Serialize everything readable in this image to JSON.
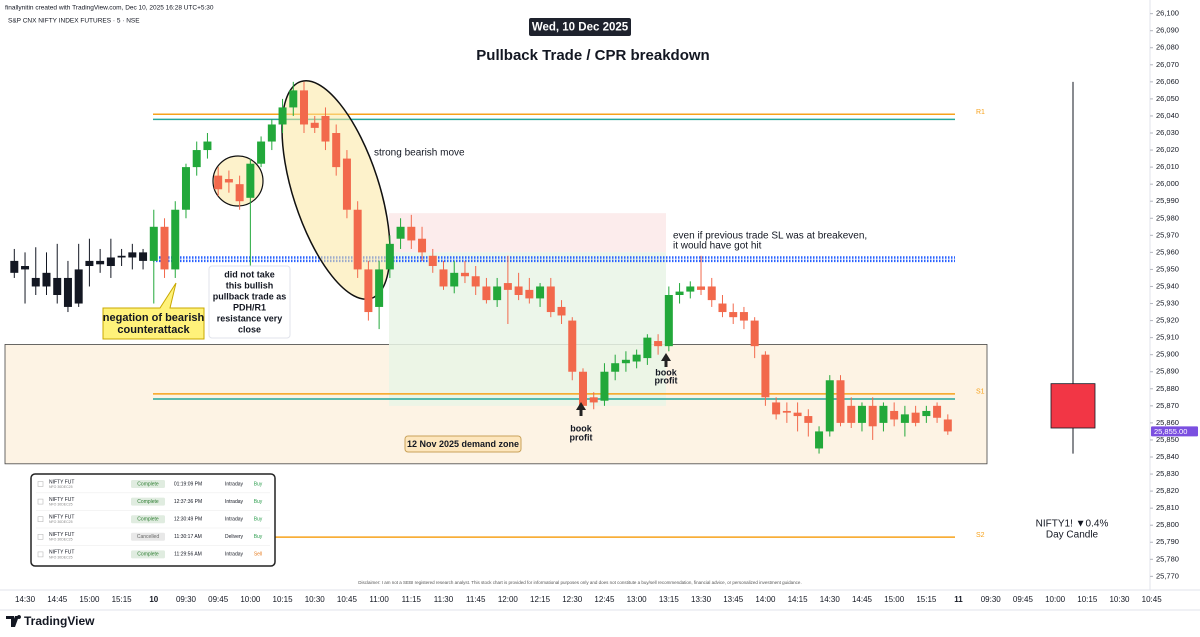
{
  "header": {
    "author_line": "finallynitin created with TradingView.com, Dec 10, 2025 16:28 UTC+5:30",
    "symbol": "S&P CNX NIFTY INDEX FUTURES · 5 · NSE",
    "date": "Wed, 10 Dec 2025"
  },
  "chart_data": {
    "type": "candlestick",
    "title": "Pullback Trade / CPR breakdown",
    "categories": [
      null,
      "14:30",
      null,
      null,
      "14:45",
      null,
      null,
      "15:00",
      null,
      null,
      "15:15",
      null,
      null,
      "10",
      null,
      null,
      "09:30",
      null,
      null,
      "09:45",
      null,
      null,
      "10:00",
      null,
      null,
      "10:15",
      null,
      null,
      "10:30",
      null,
      null,
      "10:45",
      null,
      null,
      "11:00",
      null,
      null,
      "11:15",
      null,
      null,
      "11:30",
      null,
      null,
      "11:45",
      null,
      null,
      "12:00",
      null,
      null,
      "12:15",
      null,
      null,
      "12:30",
      null,
      null,
      "12:45",
      null,
      null,
      "13:00",
      null,
      null,
      "13:15",
      null,
      null,
      "13:30",
      null,
      null,
      "13:45",
      null,
      null,
      "14:00",
      null,
      null,
      "14:15",
      null,
      null,
      "14:30",
      null,
      null,
      "14:45",
      null,
      null,
      "15:00",
      null,
      null,
      "15:15",
      null,
      null,
      "11",
      null,
      null,
      "09:30",
      null,
      null,
      "09:45",
      null,
      null,
      "10:00",
      null,
      null,
      "10:15",
      null,
      null,
      "10:30",
      null,
      null,
      "10:45"
    ],
    "open": [
      25955,
      25952,
      25945,
      25948,
      25945,
      25945,
      25930,
      25952,
      25953,
      25952,
      25957,
      25957,
      25960,
      25955,
      25975,
      25950,
      25985,
      26010,
      26020,
      26005,
      26003,
      26000,
      25992,
      26012,
      26025,
      26035,
      26045,
      26055,
      26036,
      26040,
      26030,
      26015,
      25985,
      25950,
      25928,
      25950,
      25968,
      25975,
      25968,
      25958,
      25950,
      25940,
      25948,
      25946,
      25940,
      25932,
      25942,
      25940,
      25938,
      25933,
      25940,
      25928,
      25920,
      25890,
      25875,
      25873,
      25890,
      25895,
      25896,
      25898,
      25908,
      25905,
      25935,
      25937,
      25940,
      25940,
      25930,
      25925,
      25925,
      25920,
      25900,
      25872,
      25867,
      25866,
      25864,
      25845,
      25855,
      25885,
      25870,
      25860,
      25870,
      25860,
      25867,
      25860,
      25866,
      25864,
      25870,
      25862,
      null,
      null,
      null,
      null,
      null,
      null,
      null,
      null,
      null,
      null,
      null,
      null,
      null,
      null,
      null,
      null,
      null,
      null,
      null
    ],
    "high": [
      25962,
      25960,
      25963,
      25960,
      25965,
      25955,
      25965,
      25968,
      25962,
      25968,
      25962,
      25965,
      25962,
      25985,
      25980,
      25990,
      26012,
      26025,
      26030,
      26010,
      26008,
      26005,
      26015,
      26028,
      26038,
      26050,
      26060,
      26060,
      26040,
      26045,
      26035,
      26020,
      25990,
      25955,
      25955,
      25970,
      25980,
      25982,
      25975,
      25962,
      25955,
      25955,
      25955,
      25952,
      25945,
      25945,
      25958,
      25948,
      25945,
      25942,
      25945,
      25932,
      25922,
      25892,
      25878,
      25895,
      25900,
      25902,
      25903,
      25912,
      25912,
      25940,
      25942,
      25943,
      25958,
      25945,
      25935,
      25930,
      25928,
      25922,
      25902,
      25875,
      25872,
      25872,
      25868,
      25858,
      25888,
      25888,
      25875,
      25872,
      25875,
      25872,
      25872,
      25870,
      25870,
      25870,
      25872,
      25865,
      null,
      null,
      null,
      null,
      null,
      null,
      null,
      null,
      null,
      null,
      null,
      null,
      null,
      null,
      null,
      null,
      null,
      null,
      null
    ],
    "low": [
      25945,
      25930,
      25935,
      25935,
      25930,
      25925,
      25928,
      25940,
      25948,
      25945,
      25952,
      25950,
      25950,
      25930,
      25945,
      25945,
      25980,
      26005,
      26015,
      25993,
      25995,
      25985,
      25950,
      26010,
      26020,
      26030,
      26040,
      26030,
      26030,
      26020,
      26005,
      25980,
      25945,
      25920,
      25915,
      25945,
      25962,
      25962,
      25955,
      25948,
      25938,
      25936,
      25942,
      25935,
      25930,
      25928,
      25918,
      25932,
      25930,
      25928,
      25922,
      25918,
      25885,
      25868,
      25868,
      25870,
      25885,
      25890,
      25892,
      25894,
      25900,
      25902,
      25930,
      25933,
      25935,
      25928,
      25922,
      25918,
      25915,
      25898,
      25870,
      25862,
      25860,
      25855,
      25852,
      25842,
      25852,
      25858,
      25857,
      25855,
      25850,
      25855,
      25858,
      25852,
      25858,
      25860,
      25860,
      25853,
      null,
      null,
      null,
      null,
      null,
      null,
      null,
      null,
      null,
      null,
      null,
      null,
      null,
      null,
      null,
      null,
      null,
      null,
      null
    ],
    "close": [
      25948,
      25950,
      25940,
      25940,
      25935,
      25928,
      25950,
      25955,
      25955,
      25957,
      25958,
      25960,
      25955,
      25975,
      25950,
      25985,
      26010,
      26020,
      26025,
      25997,
      26001,
      25990,
      26012,
      26025,
      26035,
      26045,
      26055,
      26035,
      26033,
      26025,
      26010,
      25985,
      25950,
      25925,
      25950,
      25965,
      25975,
      25967,
      25960,
      25952,
      25940,
      25948,
      25946,
      25940,
      25932,
      25940,
      25938,
      25935,
      25933,
      25940,
      25925,
      25923,
      25890,
      25870,
      25872,
      25890,
      25895,
      25897,
      25900,
      25910,
      25905,
      25935,
      25937,
      25940,
      25938,
      25932,
      25925,
      25922,
      25920,
      25905,
      25875,
      25865,
      25866,
      25864,
      25860,
      25855,
      25885,
      25860,
      25860,
      25870,
      25858,
      25870,
      25862,
      25865,
      25860,
      25867,
      25863,
      25855,
      null,
      null,
      null,
      null,
      null,
      null,
      null,
      null,
      null,
      null,
      null,
      null,
      null,
      null,
      null,
      null,
      null,
      null,
      null
    ],
    "candle_colors": [
      "#131722",
      "#131722",
      "#131722",
      "#131722",
      "#131722",
      "#131722",
      "#131722",
      "#131722",
      "#131722",
      "#131722",
      "#131722",
      "#131722",
      "#131722",
      null,
      null,
      null,
      null,
      null,
      null,
      null,
      null,
      null,
      null,
      null,
      null,
      null,
      null,
      null,
      null,
      null,
      null,
      null,
      null,
      null,
      null,
      null,
      null,
      null,
      null,
      null,
      null,
      null,
      null,
      null,
      null,
      null,
      null,
      null,
      null,
      null,
      null,
      null,
      null,
      null,
      null,
      null,
      null,
      null,
      null,
      null,
      null,
      null,
      null,
      null,
      null,
      null,
      null,
      null,
      null,
      null,
      null,
      null,
      null,
      null,
      null,
      null,
      null,
      null,
      null,
      null,
      null,
      null,
      null,
      null,
      null,
      null,
      null,
      null,
      null,
      null,
      null,
      null,
      null,
      null,
      null,
      null,
      null,
      null,
      null,
      null,
      null,
      null,
      null,
      null,
      null,
      null,
      null
    ],
    "up_color": "#22a83a",
    "down_color": "#f2694c",
    "ylim": [
      25762,
      26108
    ],
    "yticks": [
      {
        "value": 26100,
        "label": "26,100"
      },
      {
        "value": 26090,
        "label": "26,090"
      },
      {
        "value": 26080,
        "label": "26,080"
      },
      {
        "value": 26070,
        "label": "26,070"
      },
      {
        "value": 26060,
        "label": "26,060"
      },
      {
        "value": 26050,
        "label": "26,050"
      },
      {
        "value": 26040,
        "label": "26,040"
      },
      {
        "value": 26030,
        "label": "26,030"
      },
      {
        "value": 26020,
        "label": "26,020"
      },
      {
        "value": 26010,
        "label": "26,010"
      },
      {
        "value": 26000,
        "label": "26,000"
      },
      {
        "value": 25990,
        "label": "25,990"
      },
      {
        "value": 25980,
        "label": "25,980"
      },
      {
        "value": 25970,
        "label": "25,970"
      },
      {
        "value": 25960,
        "label": "25,960"
      },
      {
        "value": 25950,
        "label": "25,950"
      },
      {
        "value": 25940,
        "label": "25,940"
      },
      {
        "value": 25930,
        "label": "25,930"
      },
      {
        "value": 25920,
        "label": "25,920"
      },
      {
        "value": 25910,
        "label": "25,910"
      },
      {
        "value": 25900,
        "label": "25,900"
      },
      {
        "value": 25890,
        "label": "25,890"
      },
      {
        "value": 25880,
        "label": "25,880"
      },
      {
        "value": 25870,
        "label": "25,870"
      },
      {
        "value": 25860,
        "label": "25,860"
      },
      {
        "value": 25850,
        "label": "25,850"
      },
      {
        "value": 25840,
        "label": "25,840"
      },
      {
        "value": 25830,
        "label": "25,830"
      },
      {
        "value": 25820,
        "label": "25,820"
      },
      {
        "value": 25810,
        "label": "25,810"
      },
      {
        "value": 25800,
        "label": "25,800"
      },
      {
        "value": 25790,
        "label": "25,790"
      },
      {
        "value": 25780,
        "label": "25,780"
      },
      {
        "value": 25770,
        "label": "25,770"
      }
    ],
    "grid": false,
    "last_price": {
      "value": 25855,
      "label": "25,855.00",
      "color": "#7b4fe0"
    },
    "levels": [
      {
        "label": "R1",
        "values": [
          26041,
          26038
        ],
        "colors": [
          "#f7a21b",
          "#26a69a"
        ]
      },
      {
        "values": [
          25957,
          25955
        ],
        "colors": [
          "#2962ff",
          "#2962ff"
        ],
        "style": "dotted"
      },
      {
        "label": "S1",
        "values": [
          25877,
          25874
        ],
        "colors": [
          "#f7a21b",
          "#26a69a"
        ]
      },
      {
        "label": "S2",
        "values": [
          25793
        ],
        "colors": [
          "#f7a21b"
        ]
      }
    ],
    "zones": [
      {
        "label": "12 Nov 2025 demand zone",
        "top": 25906,
        "bottom": 25836,
        "color": "#fdf3e4"
      },
      {
        "top": 25983,
        "bottom": 25960,
        "color": "#fce9e9"
      },
      {
        "top": 25960,
        "bottom": 25870,
        "color": "#e9f4e6"
      }
    ],
    "day_candle": {
      "open": 25883,
      "high": 26060,
      "low": 25842,
      "close": 25857,
      "color": "#f23645"
    },
    "annotations": {
      "strong_move": "strong bearish move",
      "sl_note": [
        "even if previous trade SL was at breakeven,",
        "it would have got hit"
      ],
      "skip_note": [
        "did not take",
        "this bullish",
        "pullback trade as",
        "PDH/R1",
        "resistance very",
        "close"
      ],
      "negation": [
        "negation of bearish",
        "counterattack"
      ],
      "book_profit": [
        [
          "book",
          "profit"
        ],
        [
          "book",
          "profit"
        ]
      ],
      "day_candle": [
        "NIFTY1! ▼0.4%",
        "Day Candle"
      ],
      "disclaimer": "Disclaimer: I am not a SEBI registered research analyst. This stock chart is provided for informational purposes only and does not constitute a buy/sell recommendation, financial advice, or personalized investment guidance."
    }
  },
  "orders": {
    "rows": [
      {
        "instrument": "NIFTY FUT",
        "expiry": "NFO 30DEC25",
        "status": "Complete",
        "time": "01:19:09 PM",
        "product": "Intraday",
        "side": "Buy",
        "status_color": "#2e7d32",
        "side_color": "#2e9e4f"
      },
      {
        "instrument": "NIFTY FUT",
        "expiry": "NFO 30DEC25",
        "status": "Complete",
        "time": "12:37:36 PM",
        "product": "Intraday",
        "side": "Buy",
        "status_color": "#2e7d32",
        "side_color": "#2e9e4f"
      },
      {
        "instrument": "NIFTY FUT",
        "expiry": "NFO 30DEC25",
        "status": "Complete",
        "time": "12:30:49 PM",
        "product": "Intraday",
        "side": "Buy",
        "status_color": "#2e7d32",
        "side_color": "#2e9e4f"
      },
      {
        "instrument": "NIFTY FUT",
        "expiry": "NFO 30DEC25",
        "status": "Cancelled",
        "time": "11:30:17 AM",
        "product": "Delivery",
        "side": "Buy",
        "status_color": "#666666",
        "side_color": "#2e9e4f"
      },
      {
        "instrument": "NIFTY FUT",
        "expiry": "NFO 30DEC25",
        "status": "Complete",
        "time": "11:29:56 AM",
        "product": "Intraday",
        "side": "Sell",
        "status_color": "#2e7d32",
        "side_color": "#e67e22"
      }
    ]
  },
  "footer": {
    "brand": "TradingView"
  }
}
